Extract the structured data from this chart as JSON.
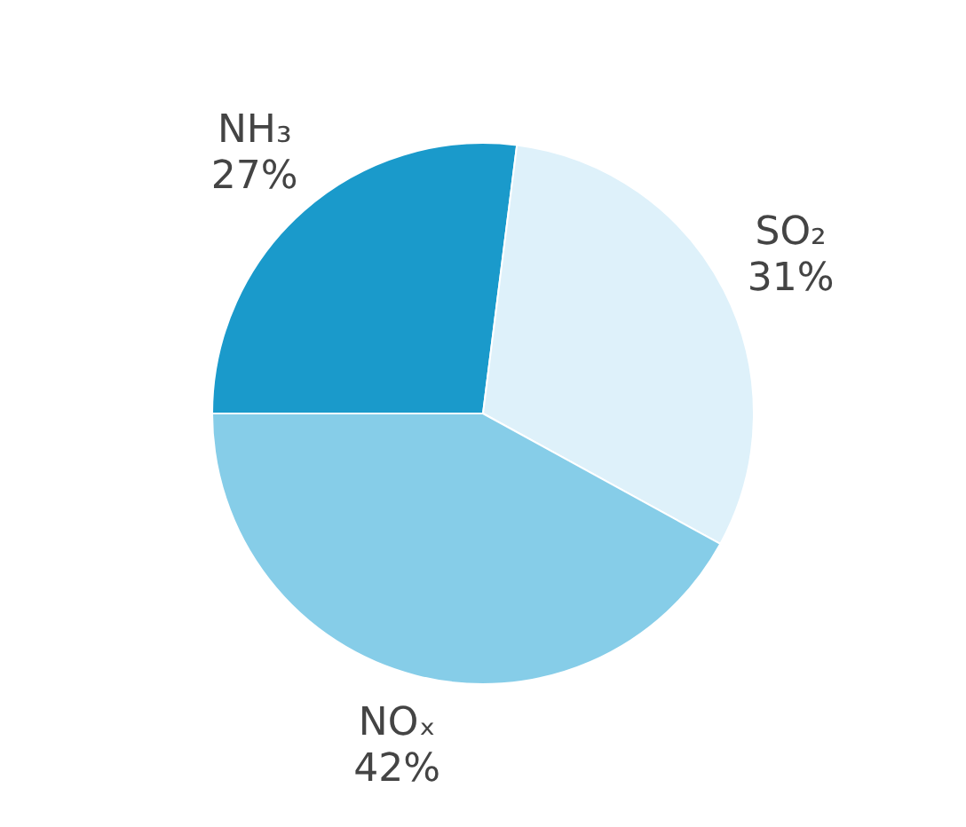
{
  "chart_data": {
    "type": "pie",
    "categories": [
      "NH₃",
      "SO₂",
      "NOₓ"
    ],
    "values": [
      27,
      31,
      42
    ],
    "colors": [
      "#1a9acb",
      "#def1fa",
      "#86cde8"
    ],
    "value_labels": [
      "27%",
      "31%",
      "42%"
    ],
    "legend": false
  }
}
